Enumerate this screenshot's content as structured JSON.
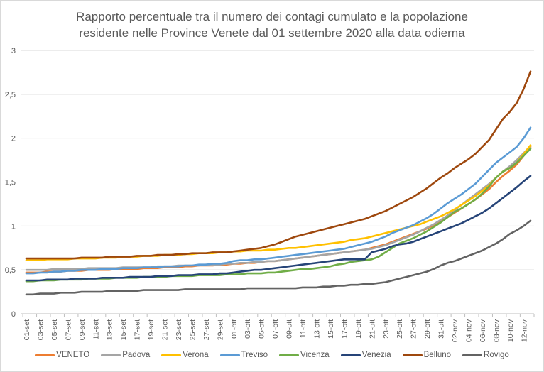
{
  "chart_data": {
    "type": "line",
    "title_lines": [
      "Rapporto percentuale tra il numero dei contagi cumulato e la popolazione",
      "residente nelle  Province Venete dal 01 settembre 2020 alla data odierna"
    ],
    "xlabel": "",
    "ylabel": "",
    "ylim": [
      0,
      3
    ],
    "y_ticks": [
      0,
      0.5,
      1,
      1.5,
      2,
      2.5,
      3
    ],
    "y_tick_labels": [
      "0",
      "0,5",
      "1",
      "1,5",
      "2",
      "2,5",
      "3"
    ],
    "grid": true,
    "legend_position": "bottom",
    "x": [
      "01-set",
      "02-set",
      "03-set",
      "04-set",
      "05-set",
      "06-set",
      "07-set",
      "08-set",
      "09-set",
      "10-set",
      "11-set",
      "12-set",
      "13-set",
      "14-set",
      "15-set",
      "16-set",
      "17-set",
      "18-set",
      "19-set",
      "20-set",
      "21-set",
      "22-set",
      "23-set",
      "24-set",
      "25-set",
      "26-set",
      "27-set",
      "28-set",
      "29-set",
      "30-set",
      "01-ott",
      "02-ott",
      "03-ott",
      "04-ott",
      "05-ott",
      "06-ott",
      "07-ott",
      "08-ott",
      "09-ott",
      "10-ott",
      "11-ott",
      "12-ott",
      "13-ott",
      "14-ott",
      "15-ott",
      "16-ott",
      "17-ott",
      "18-ott",
      "19-ott",
      "20-ott",
      "21-ott",
      "22-ott",
      "23-ott",
      "24-ott",
      "25-ott",
      "26-ott",
      "27-ott",
      "28-ott",
      "29-ott",
      "30-ott",
      "31-ott",
      "01-nov",
      "02-nov",
      "03-nov",
      "04-nov",
      "05-nov",
      "06-nov",
      "07-nov",
      "08-nov",
      "09-nov",
      "10-nov",
      "11-nov",
      "12-nov",
      "13-nov"
    ],
    "x_tick_labels": [
      "01-set",
      "03-set",
      "05-set",
      "07-set",
      "09-set",
      "11-set",
      "13-set",
      "15-set",
      "17-set",
      "19-set",
      "21-set",
      "23-set",
      "25-set",
      "27-set",
      "29-set",
      "01-ott",
      "03-ott",
      "05-ott",
      "07-ott",
      "09-ott",
      "11-ott",
      "13-ott",
      "15-ott",
      "17-ott",
      "19-ott",
      "21-ott",
      "23-ott",
      "25-ott",
      "27-ott",
      "29-ott",
      "31-ott",
      "02-nov",
      "04-nov",
      "06-nov",
      "08-nov",
      "10-nov",
      "12-nov"
    ],
    "series": [
      {
        "name": "VENETO",
        "color": "#ed7d31",
        "values": [
          0.47,
          0.47,
          0.47,
          0.48,
          0.48,
          0.48,
          0.49,
          0.49,
          0.49,
          0.5,
          0.5,
          0.5,
          0.5,
          0.51,
          0.51,
          0.51,
          0.51,
          0.52,
          0.52,
          0.52,
          0.53,
          0.53,
          0.53,
          0.54,
          0.54,
          0.55,
          0.55,
          0.55,
          0.56,
          0.56,
          0.57,
          0.57,
          0.58,
          0.58,
          0.59,
          0.6,
          0.6,
          0.61,
          0.62,
          0.63,
          0.64,
          0.65,
          0.66,
          0.67,
          0.68,
          0.69,
          0.7,
          0.71,
          0.72,
          0.73,
          0.75,
          0.77,
          0.79,
          0.82,
          0.85,
          0.88,
          0.91,
          0.94,
          0.97,
          1.01,
          1.05,
          1.1,
          1.15,
          1.2,
          1.25,
          1.3,
          1.36,
          1.42,
          1.5,
          1.57,
          1.63,
          1.7,
          1.8,
          1.9
        ]
      },
      {
        "name": "Padova",
        "color": "#a5a5a5",
        "values": [
          0.5,
          0.5,
          0.5,
          0.5,
          0.51,
          0.51,
          0.51,
          0.51,
          0.51,
          0.52,
          0.52,
          0.52,
          0.52,
          0.52,
          0.53,
          0.53,
          0.53,
          0.53,
          0.53,
          0.54,
          0.54,
          0.54,
          0.55,
          0.55,
          0.55,
          0.55,
          0.56,
          0.56,
          0.56,
          0.57,
          0.57,
          0.58,
          0.58,
          0.59,
          0.59,
          0.6,
          0.6,
          0.61,
          0.62,
          0.63,
          0.64,
          0.65,
          0.66,
          0.67,
          0.68,
          0.69,
          0.7,
          0.71,
          0.72,
          0.73,
          0.74,
          0.76,
          0.78,
          0.81,
          0.84,
          0.87,
          0.9,
          0.94,
          0.98,
          1.02,
          1.07,
          1.12,
          1.18,
          1.24,
          1.3,
          1.36,
          1.42,
          1.48,
          1.55,
          1.62,
          1.68,
          1.75,
          1.83,
          1.91
        ]
      },
      {
        "name": "Verona",
        "color": "#ffc000",
        "values": [
          0.61,
          0.61,
          0.61,
          0.62,
          0.62,
          0.62,
          0.62,
          0.63,
          0.63,
          0.63,
          0.63,
          0.64,
          0.64,
          0.64,
          0.65,
          0.65,
          0.65,
          0.66,
          0.66,
          0.66,
          0.67,
          0.67,
          0.67,
          0.68,
          0.68,
          0.69,
          0.69,
          0.69,
          0.7,
          0.7,
          0.71,
          0.71,
          0.72,
          0.72,
          0.72,
          0.73,
          0.73,
          0.74,
          0.75,
          0.75,
          0.76,
          0.77,
          0.78,
          0.79,
          0.8,
          0.81,
          0.82,
          0.84,
          0.85,
          0.86,
          0.88,
          0.9,
          0.92,
          0.94,
          0.96,
          0.98,
          1.0,
          1.02,
          1.05,
          1.08,
          1.11,
          1.15,
          1.19,
          1.24,
          1.29,
          1.34,
          1.4,
          1.46,
          1.55,
          1.62,
          1.66,
          1.72,
          1.82,
          1.92
        ]
      },
      {
        "name": "Treviso",
        "color": "#5b9bd5",
        "values": [
          0.46,
          0.46,
          0.47,
          0.47,
          0.48,
          0.48,
          0.49,
          0.49,
          0.5,
          0.5,
          0.5,
          0.51,
          0.51,
          0.51,
          0.52,
          0.52,
          0.52,
          0.53,
          0.53,
          0.53,
          0.54,
          0.54,
          0.54,
          0.55,
          0.55,
          0.56,
          0.56,
          0.57,
          0.57,
          0.58,
          0.6,
          0.61,
          0.61,
          0.62,
          0.62,
          0.63,
          0.64,
          0.65,
          0.66,
          0.67,
          0.68,
          0.69,
          0.7,
          0.71,
          0.72,
          0.73,
          0.74,
          0.76,
          0.78,
          0.8,
          0.82,
          0.85,
          0.88,
          0.92,
          0.95,
          0.98,
          1.01,
          1.05,
          1.09,
          1.14,
          1.2,
          1.26,
          1.31,
          1.36,
          1.42,
          1.48,
          1.56,
          1.64,
          1.72,
          1.78,
          1.84,
          1.9,
          2.0,
          2.12
        ]
      },
      {
        "name": "Vicenza",
        "color": "#70ad47",
        "values": [
          0.37,
          0.37,
          0.38,
          0.38,
          0.38,
          0.39,
          0.39,
          0.39,
          0.39,
          0.4,
          0.4,
          0.4,
          0.4,
          0.41,
          0.41,
          0.41,
          0.41,
          0.42,
          0.42,
          0.42,
          0.42,
          0.43,
          0.43,
          0.43,
          0.43,
          0.44,
          0.44,
          0.44,
          0.44,
          0.45,
          0.45,
          0.45,
          0.46,
          0.46,
          0.46,
          0.47,
          0.47,
          0.48,
          0.49,
          0.5,
          0.51,
          0.51,
          0.52,
          0.53,
          0.54,
          0.56,
          0.57,
          0.59,
          0.6,
          0.61,
          0.62,
          0.65,
          0.7,
          0.75,
          0.8,
          0.83,
          0.86,
          0.9,
          0.94,
          0.99,
          1.04,
          1.1,
          1.16,
          1.2,
          1.25,
          1.3,
          1.37,
          1.45,
          1.55,
          1.62,
          1.66,
          1.72,
          1.8,
          1.88
        ]
      },
      {
        "name": "Venezia",
        "color": "#264478",
        "values": [
          0.38,
          0.38,
          0.38,
          0.39,
          0.39,
          0.39,
          0.39,
          0.4,
          0.4,
          0.4,
          0.4,
          0.41,
          0.41,
          0.41,
          0.41,
          0.42,
          0.42,
          0.42,
          0.42,
          0.43,
          0.43,
          0.43,
          0.44,
          0.44,
          0.44,
          0.45,
          0.45,
          0.45,
          0.46,
          0.46,
          0.47,
          0.48,
          0.49,
          0.5,
          0.5,
          0.51,
          0.52,
          0.53,
          0.54,
          0.55,
          0.56,
          0.57,
          0.58,
          0.59,
          0.6,
          0.61,
          0.62,
          0.62,
          0.62,
          0.62,
          0.7,
          0.72,
          0.74,
          0.77,
          0.79,
          0.8,
          0.82,
          0.85,
          0.88,
          0.91,
          0.94,
          0.97,
          1.0,
          1.03,
          1.07,
          1.11,
          1.15,
          1.2,
          1.26,
          1.32,
          1.38,
          1.44,
          1.51,
          1.57
        ]
      },
      {
        "name": "Belluno",
        "color": "#9e480e",
        "values": [
          0.63,
          0.63,
          0.63,
          0.63,
          0.63,
          0.63,
          0.63,
          0.63,
          0.64,
          0.64,
          0.64,
          0.64,
          0.65,
          0.65,
          0.65,
          0.65,
          0.66,
          0.66,
          0.66,
          0.67,
          0.67,
          0.67,
          0.68,
          0.68,
          0.69,
          0.69,
          0.69,
          0.7,
          0.7,
          0.7,
          0.71,
          0.72,
          0.73,
          0.74,
          0.75,
          0.77,
          0.79,
          0.82,
          0.85,
          0.88,
          0.9,
          0.92,
          0.94,
          0.96,
          0.98,
          1.0,
          1.02,
          1.04,
          1.06,
          1.08,
          1.11,
          1.14,
          1.17,
          1.21,
          1.25,
          1.29,
          1.33,
          1.38,
          1.43,
          1.49,
          1.55,
          1.6,
          1.66,
          1.71,
          1.76,
          1.82,
          1.9,
          1.98,
          2.1,
          2.22,
          2.3,
          2.4,
          2.56,
          2.76
        ]
      },
      {
        "name": "Rovigo",
        "color": "#636363",
        "values": [
          0.22,
          0.22,
          0.23,
          0.23,
          0.23,
          0.24,
          0.24,
          0.24,
          0.25,
          0.25,
          0.25,
          0.25,
          0.26,
          0.26,
          0.26,
          0.26,
          0.26,
          0.27,
          0.27,
          0.27,
          0.27,
          0.27,
          0.27,
          0.28,
          0.28,
          0.28,
          0.28,
          0.28,
          0.28,
          0.28,
          0.28,
          0.28,
          0.29,
          0.29,
          0.29,
          0.29,
          0.29,
          0.29,
          0.29,
          0.29,
          0.3,
          0.3,
          0.3,
          0.31,
          0.31,
          0.32,
          0.32,
          0.33,
          0.33,
          0.34,
          0.34,
          0.35,
          0.36,
          0.38,
          0.4,
          0.42,
          0.44,
          0.46,
          0.48,
          0.51,
          0.55,
          0.58,
          0.6,
          0.63,
          0.66,
          0.69,
          0.72,
          0.76,
          0.8,
          0.85,
          0.91,
          0.95,
          1.0,
          1.06
        ]
      }
    ]
  }
}
